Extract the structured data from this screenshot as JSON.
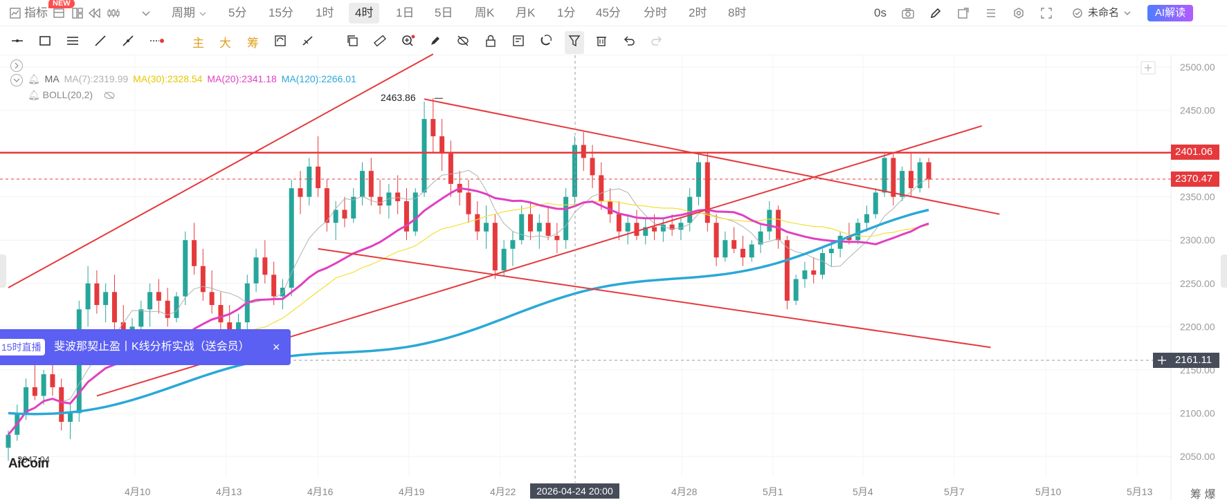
{
  "toolbar": {
    "indicator_label": "指标",
    "new_badge": "NEW",
    "period_label": "周期",
    "intervals": [
      "5分",
      "15分",
      "1时",
      "4时",
      "1日",
      "5日",
      "周K",
      "月K",
      "1分",
      "45分",
      "分时",
      "2时",
      "8时"
    ],
    "active_interval": "4时",
    "countdown": "0s",
    "unnamed_label": "未命名",
    "ai_button": "AI解读"
  },
  "drawbar": {
    "text_tools": [
      "主",
      "大",
      "筹"
    ]
  },
  "legend": {
    "ma_title": "MA",
    "ma7": "MA(7):2319.99",
    "ma30": "MA(30):2328.54",
    "ma20": "MA(20):2341.18",
    "ma120": "MA(120):2266.01",
    "boll": "BOLL(20,2)"
  },
  "colors": {
    "ma7": "#b0b0b0",
    "ma30": "#f2e034",
    "ma20": "#e040c0",
    "ma120": "#2ba8d6",
    "up": "#26a69a",
    "down": "#e5393c",
    "trendline": "#e5393c",
    "current_price_bg": "#e5393c",
    "crosshair_price_bg": "#474c5a"
  },
  "price_axis": {
    "ticks": [
      "2500.00",
      "2450.00",
      "2400.00",
      "2350.00",
      "2300.00",
      "2250.00",
      "2200.00",
      "2150.00",
      "2100.00",
      "2050.00"
    ],
    "resistance_price": "2401.06",
    "current_price": "2370.47",
    "crosshair_price": "2161.11"
  },
  "time_axis": {
    "ticks": [
      "4月10",
      "4月13",
      "4月16",
      "4月19",
      "4月22",
      "4月28",
      "5月1",
      "5月4",
      "5月7",
      "5月10",
      "5月13"
    ],
    "crosshair_time": "2026-04-24 20:00"
  },
  "annotations": {
    "high": "2463.86",
    "low": "2047.04"
  },
  "banner": {
    "tag": "15时直播",
    "title": "斐波那契止盈丨K线分析实战（送会员）",
    "close": "×"
  },
  "brand": {
    "logo": "AiCoin"
  },
  "bottom_right": "筹 爆",
  "chart_data": {
    "type": "candlestick",
    "title": "",
    "ylim": [
      2030,
      2510
    ],
    "x_ticks": [
      "4月10",
      "4月13",
      "4月16",
      "4月19",
      "4月22",
      "4月28",
      "5月1",
      "5月4",
      "5月7",
      "5月10",
      "5月13"
    ],
    "candles_ohlc": [
      [
        2060,
        2080,
        2045,
        2075
      ],
      [
        2075,
        2110,
        2068,
        2100
      ],
      [
        2100,
        2140,
        2092,
        2130
      ],
      [
        2130,
        2160,
        2115,
        2120
      ],
      [
        2120,
        2150,
        2110,
        2145
      ],
      [
        2145,
        2165,
        2120,
        2130
      ],
      [
        2130,
        2140,
        2080,
        2090
      ],
      [
        2090,
        2110,
        2070,
        2100
      ],
      [
        2100,
        2230,
        2090,
        2220
      ],
      [
        2220,
        2270,
        2200,
        2250
      ],
      [
        2250,
        2265,
        2215,
        2225
      ],
      [
        2225,
        2250,
        2205,
        2240
      ],
      [
        2240,
        2260,
        2195,
        2205
      ],
      [
        2205,
        2225,
        2180,
        2190
      ],
      [
        2190,
        2210,
        2175,
        2200
      ],
      [
        2200,
        2230,
        2190,
        2220
      ],
      [
        2220,
        2250,
        2200,
        2240
      ],
      [
        2240,
        2255,
        2215,
        2230
      ],
      [
        2230,
        2245,
        2200,
        2210
      ],
      [
        2210,
        2240,
        2205,
        2235
      ],
      [
        2235,
        2310,
        2225,
        2300
      ],
      [
        2300,
        2320,
        2260,
        2270
      ],
      [
        2270,
        2290,
        2230,
        2240
      ],
      [
        2240,
        2265,
        2215,
        2225
      ],
      [
        2225,
        2240,
        2195,
        2205
      ],
      [
        2205,
        2225,
        2185,
        2195
      ],
      [
        2195,
        2215,
        2180,
        2205
      ],
      [
        2205,
        2260,
        2195,
        2250
      ],
      [
        2250,
        2290,
        2240,
        2280
      ],
      [
        2280,
        2300,
        2250,
        2260
      ],
      [
        2260,
        2275,
        2225,
        2235
      ],
      [
        2235,
        2255,
        2220,
        2245
      ],
      [
        2245,
        2370,
        2235,
        2360
      ],
      [
        2360,
        2380,
        2330,
        2350
      ],
      [
        2350,
        2395,
        2340,
        2385
      ],
      [
        2385,
        2420,
        2350,
        2360
      ],
      [
        2360,
        2370,
        2310,
        2320
      ],
      [
        2320,
        2345,
        2300,
        2335
      ],
      [
        2335,
        2350,
        2315,
        2325
      ],
      [
        2325,
        2360,
        2320,
        2350
      ],
      [
        2350,
        2390,
        2340,
        2380
      ],
      [
        2380,
        2395,
        2340,
        2350
      ],
      [
        2350,
        2370,
        2330,
        2340
      ],
      [
        2340,
        2365,
        2325,
        2355
      ],
      [
        2355,
        2375,
        2330,
        2345
      ],
      [
        2345,
        2360,
        2300,
        2310
      ],
      [
        2310,
        2360,
        2305,
        2355
      ],
      [
        2355,
        2460,
        2350,
        2440
      ],
      [
        2440,
        2464,
        2400,
        2420
      ],
      [
        2420,
        2440,
        2380,
        2400
      ],
      [
        2400,
        2415,
        2350,
        2365
      ],
      [
        2365,
        2380,
        2340,
        2355
      ],
      [
        2355,
        2370,
        2320,
        2330
      ],
      [
        2330,
        2345,
        2300,
        2310
      ],
      [
        2310,
        2340,
        2290,
        2320
      ],
      [
        2320,
        2330,
        2255,
        2265
      ],
      [
        2265,
        2300,
        2258,
        2290
      ],
      [
        2290,
        2310,
        2270,
        2300
      ],
      [
        2300,
        2340,
        2295,
        2330
      ],
      [
        2330,
        2345,
        2300,
        2310
      ],
      [
        2310,
        2330,
        2290,
        2320
      ],
      [
        2320,
        2340,
        2300,
        2305
      ],
      [
        2305,
        2320,
        2285,
        2300
      ],
      [
        2300,
        2360,
        2290,
        2350
      ],
      [
        2350,
        2420,
        2340,
        2410
      ],
      [
        2410,
        2425,
        2380,
        2395
      ],
      [
        2395,
        2410,
        2360,
        2375
      ],
      [
        2375,
        2390,
        2335,
        2345
      ],
      [
        2345,
        2360,
        2320,
        2330
      ],
      [
        2330,
        2345,
        2300,
        2310
      ],
      [
        2310,
        2330,
        2295,
        2320
      ],
      [
        2320,
        2335,
        2300,
        2305
      ],
      [
        2305,
        2325,
        2295,
        2315
      ],
      [
        2315,
        2330,
        2300,
        2310
      ],
      [
        2310,
        2325,
        2298,
        2318
      ],
      [
        2318,
        2330,
        2305,
        2312
      ],
      [
        2312,
        2325,
        2300,
        2320
      ],
      [
        2320,
        2360,
        2310,
        2350
      ],
      [
        2350,
        2400,
        2340,
        2390
      ],
      [
        2390,
        2402,
        2310,
        2320
      ],
      [
        2320,
        2330,
        2270,
        2280
      ],
      [
        2280,
        2310,
        2275,
        2300
      ],
      [
        2300,
        2315,
        2285,
        2290
      ],
      [
        2290,
        2305,
        2270,
        2280
      ],
      [
        2280,
        2300,
        2275,
        2295
      ],
      [
        2295,
        2320,
        2285,
        2310
      ],
      [
        2310,
        2345,
        2300,
        2335
      ],
      [
        2335,
        2340,
        2290,
        2300
      ],
      [
        2300,
        2305,
        2220,
        2230
      ],
      [
        2230,
        2260,
        2225,
        2255
      ],
      [
        2255,
        2275,
        2245,
        2265
      ],
      [
        2265,
        2280,
        2250,
        2260
      ],
      [
        2260,
        2290,
        2255,
        2285
      ],
      [
        2285,
        2300,
        2270,
        2290
      ],
      [
        2290,
        2310,
        2280,
        2305
      ],
      [
        2305,
        2320,
        2295,
        2300
      ],
      [
        2300,
        2325,
        2295,
        2320
      ],
      [
        2320,
        2340,
        2310,
        2330
      ],
      [
        2330,
        2360,
        2325,
        2355
      ],
      [
        2355,
        2400,
        2350,
        2395
      ],
      [
        2395,
        2400,
        2340,
        2350
      ],
      [
        2350,
        2385,
        2345,
        2380
      ],
      [
        2380,
        2400,
        2350,
        2360
      ],
      [
        2360,
        2395,
        2355,
        2390
      ],
      [
        2390,
        2395,
        2360,
        2370
      ]
    ],
    "trendlines_price": [
      {
        "from": [
          0,
          2245
        ],
        "to": [
          48,
          2515
        ]
      },
      {
        "from": [
          10,
          2120
        ],
        "to": [
          110,
          2432
        ]
      },
      {
        "from": [
          35,
          2290
        ],
        "to": [
          111,
          2176
        ]
      },
      {
        "from": [
          47,
          2463
        ],
        "to": [
          112,
          2330
        ]
      }
    ],
    "horizontal_levels": [
      2401.06,
      2370.47,
      2161.11
    ]
  }
}
